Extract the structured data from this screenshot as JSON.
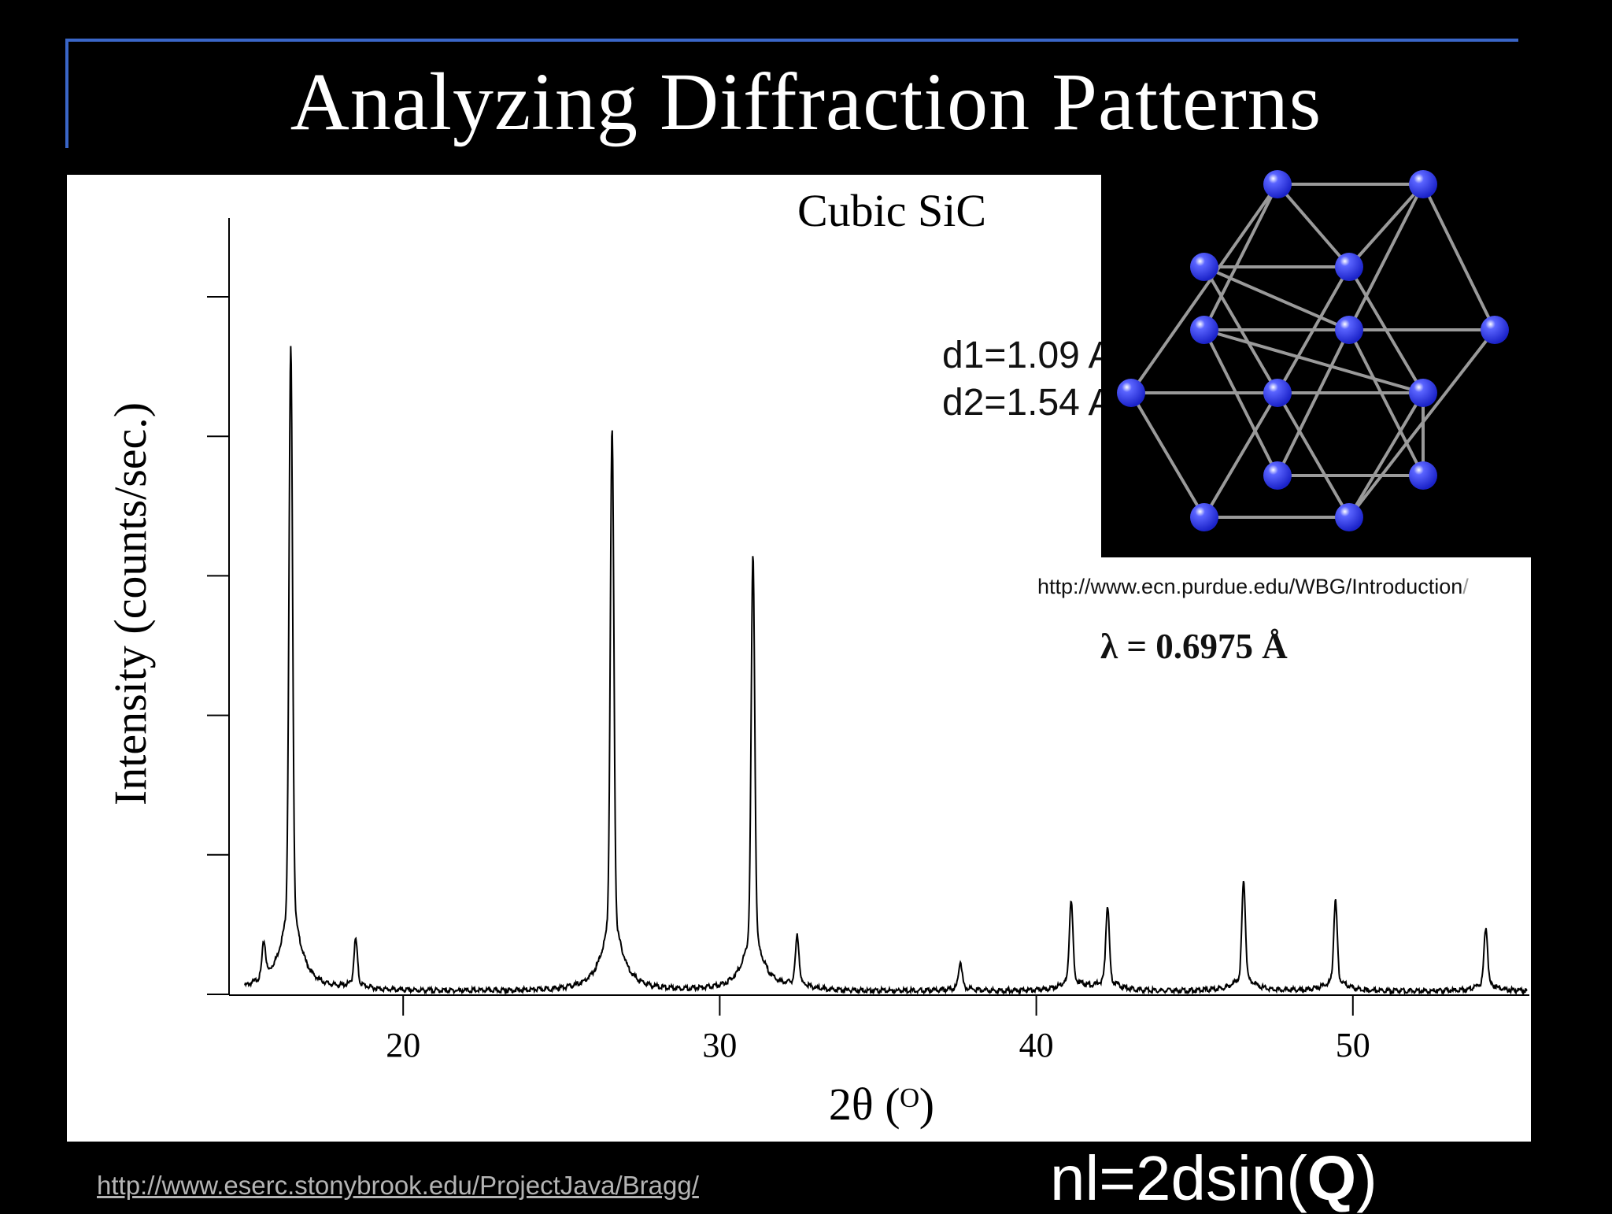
{
  "slide": {
    "title": "Analyzing Diffraction Patterns",
    "d_spacings": [
      "d1=1.09 A",
      "d2=1.54 A"
    ],
    "image_credit": "http://www.ecn.purdue.edu/WBG/Introduction",
    "image_credit_trail": "/",
    "wavelength": "λ = 0.6975 Å",
    "bottom_link": "http://www.eserc.stonybrook.edu/ProjectJava/Bragg/",
    "equation": {
      "before": "nl=2dsin(",
      "bold": "Q",
      "after": ")"
    }
  },
  "chart_data": {
    "type": "line",
    "title": "Cubic SiC",
    "xlabel": "2θ (ᴼ)",
    "ylabel": "Intensity (counts/sec.)",
    "xlim": [
      14.5,
      55.5
    ],
    "ylim": [
      0,
      100
    ],
    "xticks": [
      20,
      30,
      40,
      50
    ],
    "yticks": [
      0,
      20,
      40,
      60,
      80,
      100
    ],
    "ytick_labels_shown": false,
    "grid": false,
    "baseline": 0.6,
    "peaks": [
      {
        "x": 15.6,
        "height": 6.5
      },
      {
        "x": 16.45,
        "height": 111
      },
      {
        "x": 18.5,
        "height": 8.5
      },
      {
        "x": 26.6,
        "height": 97
      },
      {
        "x": 31.05,
        "height": 75
      },
      {
        "x": 32.45,
        "height": 9
      },
      {
        "x": 37.6,
        "height": 5
      },
      {
        "x": 41.1,
        "height": 15.5
      },
      {
        "x": 42.25,
        "height": 14.5
      },
      {
        "x": 46.55,
        "height": 19
      },
      {
        "x": 49.45,
        "height": 15.5
      },
      {
        "x": 54.2,
        "height": 11
      }
    ]
  },
  "crystal": {
    "atom_color": "#1a22c8",
    "bond_color": "#9a9a9a"
  }
}
